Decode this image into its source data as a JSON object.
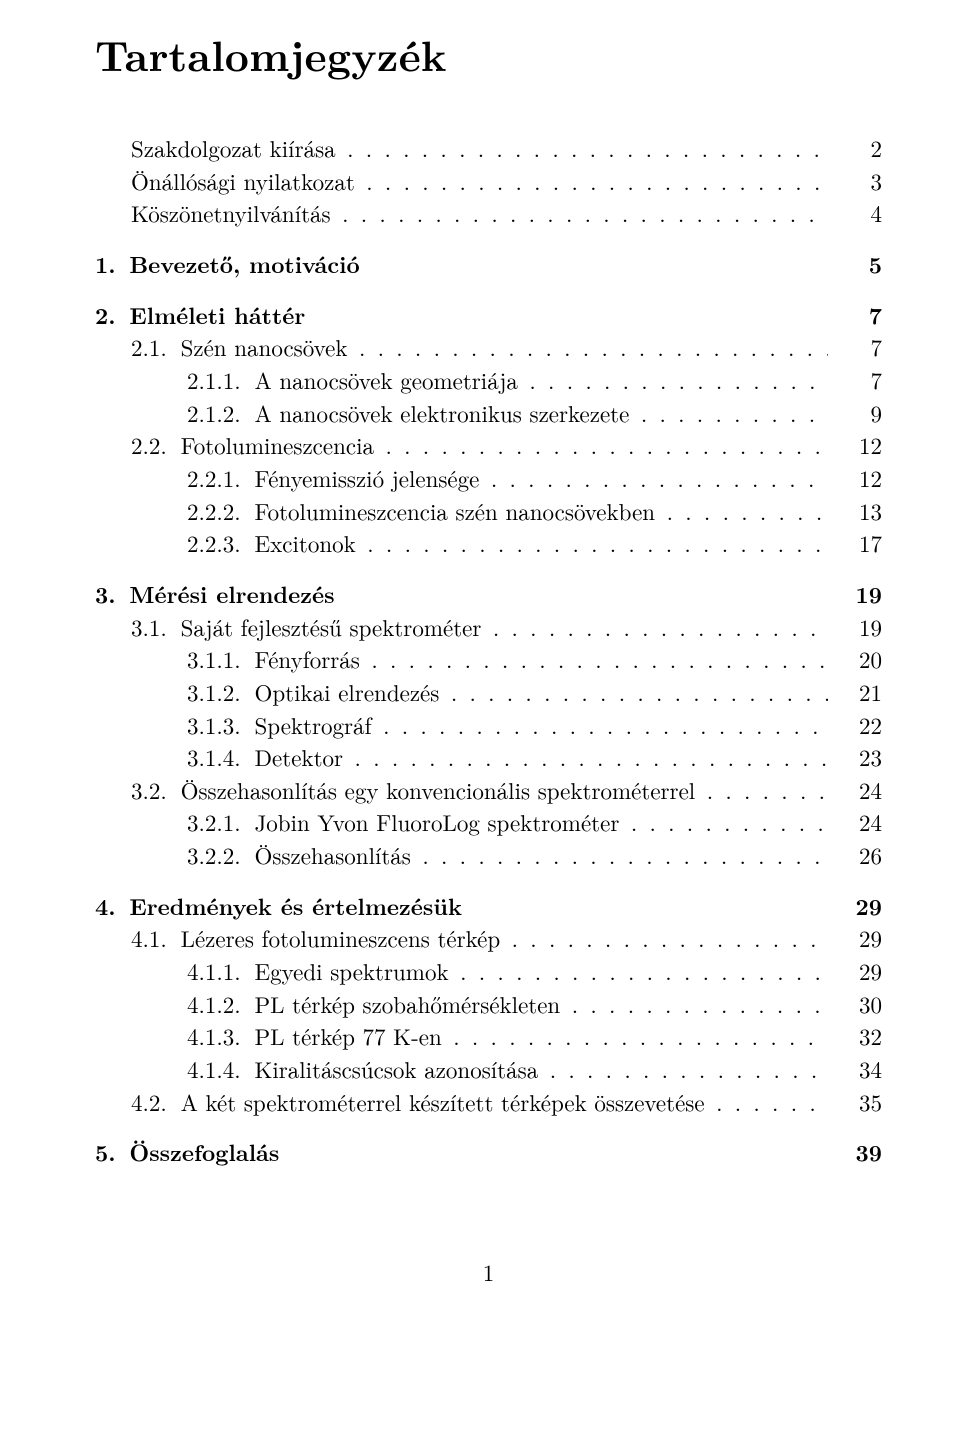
{
  "title": "Tartalomjegyzék",
  "footer_page": "1",
  "entries": [
    {
      "level": 1,
      "bold": false,
      "num": "",
      "label": "Szakdolgozat kiírása",
      "page": "2",
      "dots": true,
      "gap": false
    },
    {
      "level": 1,
      "bold": false,
      "num": "",
      "label": "Önállósági nyilatkozat",
      "page": "3",
      "dots": true,
      "gap": false
    },
    {
      "level": 1,
      "bold": false,
      "num": "",
      "label": "Köszönetnyilvánítás",
      "page": "4",
      "dots": true,
      "gap": false
    },
    {
      "level": 0,
      "bold": true,
      "num": "1.",
      "label": "Bevezető, motiváció",
      "page": "5",
      "dots": false,
      "gap": true
    },
    {
      "level": 0,
      "bold": true,
      "num": "2.",
      "label": "Elméleti háttér",
      "page": "7",
      "dots": false,
      "gap": true
    },
    {
      "level": 1,
      "bold": false,
      "num": "2.1.",
      "label": "Szén nanocsövek",
      "page": "7",
      "dots": true,
      "gap": false
    },
    {
      "level": 2,
      "bold": false,
      "num": "2.1.1.",
      "label": "A nanocsövek geometriája",
      "page": "7",
      "dots": true,
      "gap": false
    },
    {
      "level": 2,
      "bold": false,
      "num": "2.1.2.",
      "label": "A nanocsövek elektronikus szerkezete",
      "page": "9",
      "dots": true,
      "gap": false
    },
    {
      "level": 1,
      "bold": false,
      "num": "2.2.",
      "label": "Fotolumineszcencia",
      "page": "12",
      "dots": true,
      "gap": false
    },
    {
      "level": 2,
      "bold": false,
      "num": "2.2.1.",
      "label": "Fényemisszió jelensége",
      "page": "12",
      "dots": true,
      "gap": false
    },
    {
      "level": 2,
      "bold": false,
      "num": "2.2.2.",
      "label": "Fotolumineszcencia szén nanocsövekben",
      "page": "13",
      "dots": true,
      "gap": false
    },
    {
      "level": 2,
      "bold": false,
      "num": "2.2.3.",
      "label": "Excitonok",
      "page": "17",
      "dots": true,
      "gap": false
    },
    {
      "level": 0,
      "bold": true,
      "num": "3.",
      "label": "Mérési elrendezés",
      "page": "19",
      "dots": false,
      "gap": true
    },
    {
      "level": 1,
      "bold": false,
      "num": "3.1.",
      "label": "Saját fejlesztésű spektrométer",
      "page": "19",
      "dots": true,
      "gap": false
    },
    {
      "level": 2,
      "bold": false,
      "num": "3.1.1.",
      "label": "Fényforrás",
      "page": "20",
      "dots": true,
      "gap": false
    },
    {
      "level": 2,
      "bold": false,
      "num": "3.1.2.",
      "label": "Optikai elrendezés",
      "page": "21",
      "dots": true,
      "gap": false
    },
    {
      "level": 2,
      "bold": false,
      "num": "3.1.3.",
      "label": "Spektrográf",
      "page": "22",
      "dots": true,
      "gap": false
    },
    {
      "level": 2,
      "bold": false,
      "num": "3.1.4.",
      "label": "Detektor",
      "page": "23",
      "dots": true,
      "gap": false
    },
    {
      "level": 1,
      "bold": false,
      "num": "3.2.",
      "label": "Összehasonlítás egy konvencionális spektrométerrel",
      "page": "24",
      "dots": true,
      "gap": false
    },
    {
      "level": 2,
      "bold": false,
      "num": "3.2.1.",
      "label": "Jobin Yvon FluoroLog spektrométer",
      "page": "24",
      "dots": true,
      "gap": false
    },
    {
      "level": 2,
      "bold": false,
      "num": "3.2.2.",
      "label": "Összehasonlítás",
      "page": "26",
      "dots": true,
      "gap": false
    },
    {
      "level": 0,
      "bold": true,
      "num": "4.",
      "label": "Eredmények és értelmezésük",
      "page": "29",
      "dots": false,
      "gap": true
    },
    {
      "level": 1,
      "bold": false,
      "num": "4.1.",
      "label": "Lézeres fotolumineszcens térkép",
      "page": "29",
      "dots": true,
      "gap": false
    },
    {
      "level": 2,
      "bold": false,
      "num": "4.1.1.",
      "label": "Egyedi spektrumok",
      "page": "29",
      "dots": true,
      "gap": false
    },
    {
      "level": 2,
      "bold": false,
      "num": "4.1.2.",
      "label": "PL térkép szobahőmérsékleten",
      "page": "30",
      "dots": true,
      "gap": false
    },
    {
      "level": 2,
      "bold": false,
      "num": "4.1.3.",
      "label": "PL térkép 77 K-en",
      "page": "32",
      "dots": true,
      "gap": false
    },
    {
      "level": 2,
      "bold": false,
      "num": "4.1.4.",
      "label": "Kiralitáscsúcsok azonosítása",
      "page": "34",
      "dots": true,
      "gap": false
    },
    {
      "level": 1,
      "bold": false,
      "num": "4.2.",
      "label": "A két spektrométerrel készített térképek összevetése",
      "page": "35",
      "dots": true,
      "gap": false
    },
    {
      "level": 0,
      "bold": true,
      "num": "5.",
      "label": "Összefoglalás",
      "page": "39",
      "dots": false,
      "gap": true
    }
  ]
}
